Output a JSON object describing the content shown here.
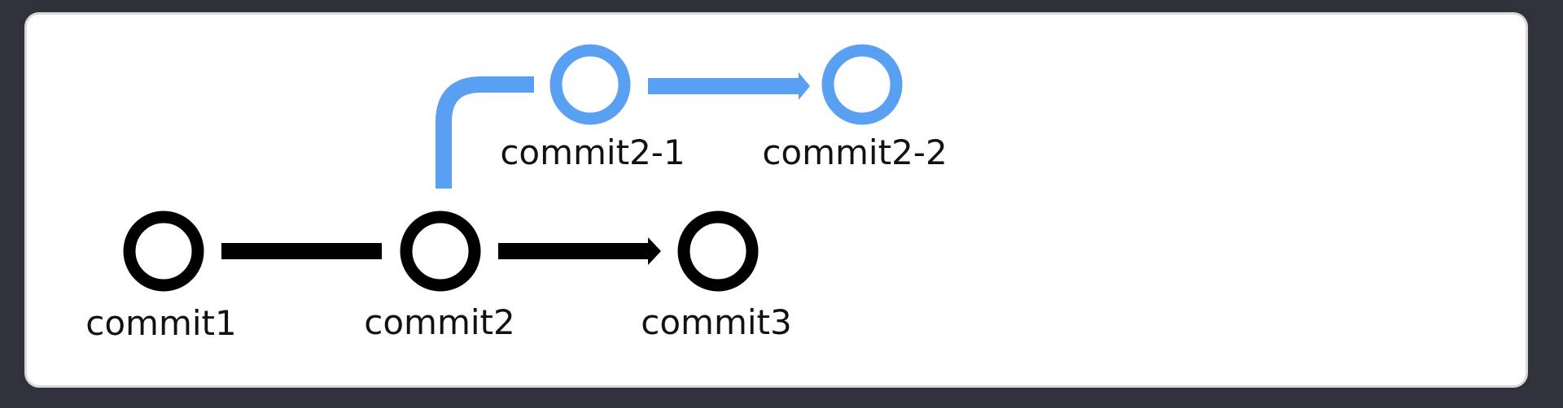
{
  "colors": {
    "background": "#2f323a",
    "card": "#ffffff",
    "main_branch": "#000000",
    "feature_branch": "#5aa0f2"
  },
  "commits": {
    "commit1": {
      "label": "commit1"
    },
    "commit2": {
      "label": "commit2"
    },
    "commit3": {
      "label": "commit3"
    },
    "commit2_1": {
      "label": "commit2-1"
    },
    "commit2_2": {
      "label": "commit2-2"
    }
  }
}
